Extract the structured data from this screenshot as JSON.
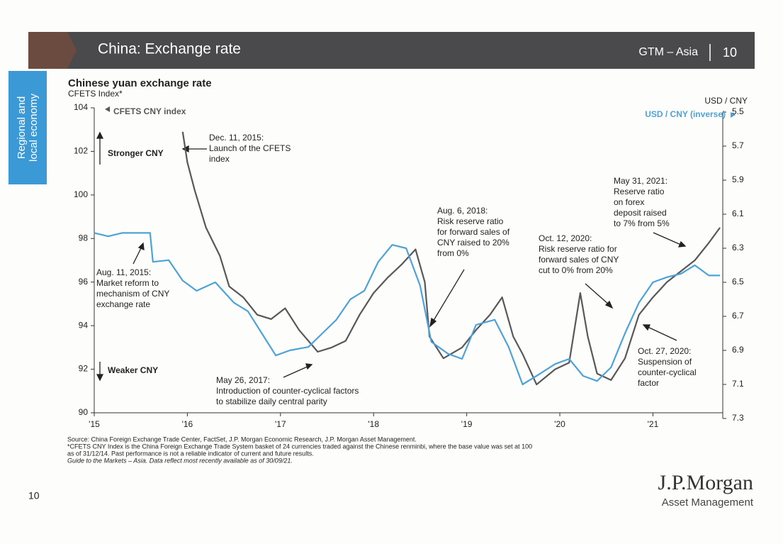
{
  "header": {
    "title": "China: Exchange rate",
    "section": "GTM – Asia",
    "page": "10"
  },
  "side_tab": [
    "Regional and",
    "local economy"
  ],
  "chart_data": {
    "type": "line",
    "title": "Chinese yuan exchange rate",
    "subtitle": "CFETS Index*",
    "y2_label": "USD / CNY",
    "xlim": [
      2015,
      2021.75
    ],
    "xticks": [
      {
        "value": 2015,
        "label": "'15"
      },
      {
        "value": 2016,
        "label": "'16"
      },
      {
        "value": 2017,
        "label": "'17"
      },
      {
        "value": 2018,
        "label": "'18"
      },
      {
        "value": 2019,
        "label": "'19"
      },
      {
        "value": 2020,
        "label": "'20"
      },
      {
        "value": 2021,
        "label": "'21"
      }
    ],
    "ylim": [
      90,
      104
    ],
    "yticks": [
      90,
      92,
      94,
      96,
      98,
      100,
      102,
      104
    ],
    "y2lim": [
      5.5,
      7.3
    ],
    "y2ticks": [
      5.5,
      5.7,
      5.9,
      6.1,
      6.3,
      6.5,
      6.7,
      6.9,
      7.1,
      7.3
    ],
    "y2_inverted": true,
    "series": [
      {
        "name": "CFETS CNY index",
        "color": "#58585a",
        "x": [
          2015.95,
          2016.0,
          2016.08,
          2016.2,
          2016.35,
          2016.45,
          2016.6,
          2016.75,
          2016.9,
          2017.05,
          2017.2,
          2017.4,
          2017.55,
          2017.7,
          2017.85,
          2018.0,
          2018.15,
          2018.3,
          2018.45,
          2018.55,
          2018.6,
          2018.75,
          2018.95,
          2019.1,
          2019.25,
          2019.38,
          2019.5,
          2019.6,
          2019.75,
          2019.95,
          2020.1,
          2020.22,
          2020.3,
          2020.4,
          2020.55,
          2020.7,
          2020.85,
          2021.0,
          2021.15,
          2021.3,
          2021.45,
          2021.6,
          2021.72
        ],
        "values": [
          102.9,
          101.5,
          100.2,
          98.5,
          97.2,
          95.8,
          95.3,
          94.5,
          94.3,
          94.8,
          93.8,
          92.8,
          93.0,
          93.3,
          94.5,
          95.5,
          96.2,
          96.8,
          97.5,
          96.0,
          93.5,
          92.5,
          93.0,
          93.8,
          94.5,
          95.3,
          93.5,
          92.7,
          91.3,
          92.0,
          92.3,
          95.5,
          93.5,
          91.8,
          91.5,
          92.5,
          94.5,
          95.3,
          96.0,
          96.5,
          97.0,
          97.8,
          98.5
        ]
      },
      {
        "name": "USD / CNY (inverse)",
        "color": "#4da3d8",
        "axis": "y2",
        "x": [
          2015.0,
          2015.15,
          2015.3,
          2015.5,
          2015.6,
          2015.63,
          2015.8,
          2015.95,
          2016.1,
          2016.3,
          2016.5,
          2016.65,
          2016.8,
          2016.95,
          2017.1,
          2017.3,
          2017.45,
          2017.6,
          2017.75,
          2017.9,
          2018.05,
          2018.2,
          2018.35,
          2018.5,
          2018.62,
          2018.8,
          2018.95,
          2019.1,
          2019.3,
          2019.45,
          2019.6,
          2019.75,
          2019.95,
          2020.1,
          2020.25,
          2020.4,
          2020.55,
          2020.7,
          2020.85,
          2021.0,
          2021.15,
          2021.3,
          2021.45,
          2021.6,
          2021.72
        ],
        "values": [
          6.21,
          6.23,
          6.21,
          6.21,
          6.21,
          6.38,
          6.37,
          6.49,
          6.55,
          6.5,
          6.62,
          6.67,
          6.8,
          6.93,
          6.9,
          6.88,
          6.8,
          6.72,
          6.6,
          6.55,
          6.38,
          6.28,
          6.3,
          6.52,
          6.85,
          6.92,
          6.95,
          6.75,
          6.72,
          6.88,
          7.1,
          7.05,
          6.98,
          6.95,
          7.05,
          7.08,
          7.0,
          6.8,
          6.62,
          6.5,
          6.47,
          6.45,
          6.4,
          6.46,
          6.46
        ]
      }
    ],
    "annotations": [
      {
        "lines": [
          "Stronger CNY"
        ]
      },
      {
        "lines": [
          "Weaker CNY"
        ]
      },
      {
        "lines": [
          "Dec. 11, 2015:",
          "Launch of the CFETS",
          "index"
        ]
      },
      {
        "lines": [
          "Aug. 11, 2015:",
          "Market reform to",
          "mechanism of CNY",
          "exchange rate"
        ]
      },
      {
        "lines": [
          "May 26, 2017:",
          "Introduction of counter-cyclical factors",
          "to stabilize daily central parity"
        ]
      },
      {
        "lines": [
          "Aug. 6, 2018:",
          "Risk reserve ratio",
          "for forward sales of",
          "CNY raised to 20%",
          "from 0%"
        ]
      },
      {
        "lines": [
          "Oct. 12, 2020:",
          "Risk reserve ratio for",
          "forward sales of CNY",
          "cut to 0% from 20%"
        ]
      },
      {
        "lines": [
          "May 31, 2021:",
          "Reserve ratio",
          "on forex",
          "deposit raised",
          "to 7% from 5%"
        ]
      },
      {
        "lines": [
          "Oct. 27, 2020:",
          "Suspension of",
          "counter-cyclical",
          "factor"
        ]
      }
    ]
  },
  "footnotes": [
    "Source: China Foreign Exchange Trade Center, FactSet, J.P. Morgan Economic Research, J.P. Morgan Asset Management.",
    "*CFETS CNY Index is the China Foreign Exchange Trade System basket of 24 currencies traded against the Chinese renminbi, where the base value was set at 100",
    "as of 31/12/14. Past performance is not a reliable indicator of current and future results.",
    "Guide to the Markets – Asia. Data reflect most recently available as of 30/09/21."
  ],
  "page_number": "10",
  "logo": {
    "name": "J.P.Morgan",
    "sub": "Asset Management"
  }
}
